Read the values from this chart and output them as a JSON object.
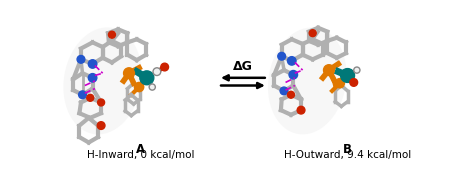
{
  "bg_color": "#ffffff",
  "label_A": "A",
  "label_B": "B",
  "sublabel_A": "H-Inward, 0 kcal/mol",
  "sublabel_B": "H-Outward, 9.4 kcal/mol",
  "delta_g_label": "ΔG",
  "label_fontsize": 8.5,
  "sublabel_fontsize": 7.5,
  "dg_fontsize": 9,
  "figsize": [
    4.74,
    1.8
  ],
  "dpi": 100,
  "mol_colors": {
    "gray": "#b0b0b0",
    "gray_dark": "#888888",
    "gray_light": "#d8d8d8",
    "blue": "#2255cc",
    "blue_dark": "#1133aa",
    "red": "#cc2200",
    "orange": "#e07800",
    "teal": "#007878",
    "magenta": "#cc00cc",
    "white": "#f0f0f0",
    "black": "#000000"
  }
}
